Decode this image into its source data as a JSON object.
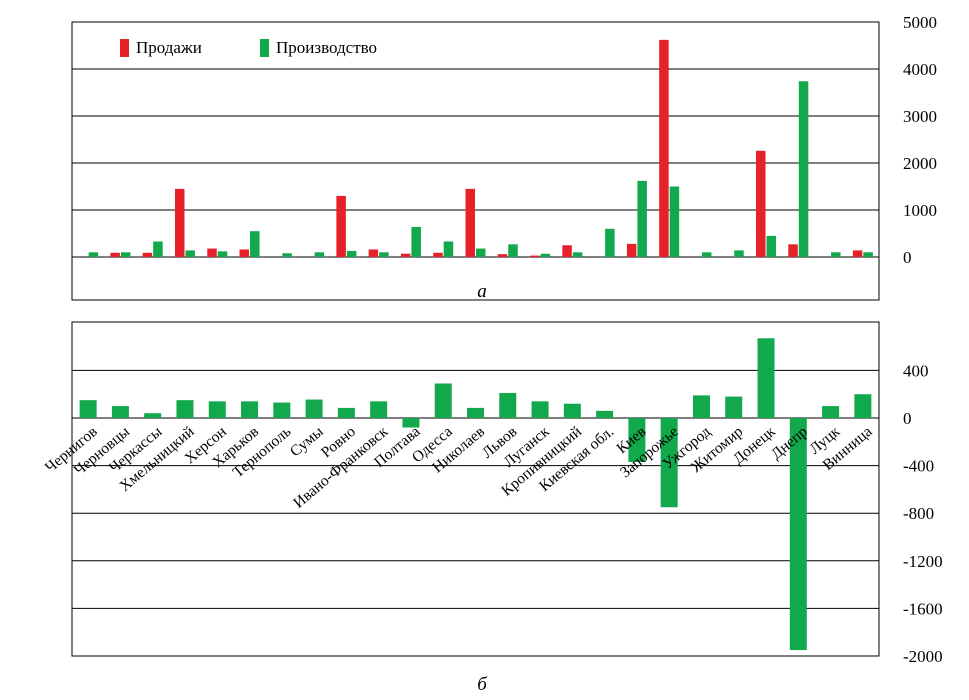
{
  "chart_data": [
    {
      "type": "bar",
      "panel_label": "а",
      "categories": [
        "Чернигов",
        "Черновцы",
        "Черкассы",
        "Хмельницкий",
        "Херсон",
        "Харьков",
        "Тернополь",
        "Сумы",
        "Ровно",
        "Ивано-Франковск",
        "Полтава",
        "Одесса",
        "Николаев",
        "Львов",
        "Луганск",
        "Кропивницкий",
        "Киевская обл.",
        "Киев",
        "Запорожье",
        "Ужгород",
        "Житомир",
        "Донецк",
        "Днепр",
        "Луцк",
        "Винница"
      ],
      "series": [
        {
          "name": "Продажи",
          "color": "#e8202a",
          "values": [
            0,
            90,
            90,
            1450,
            180,
            160,
            0,
            0,
            1300,
            160,
            70,
            90,
            1450,
            60,
            30,
            250,
            0,
            280,
            4620,
            0,
            0,
            2260,
            270,
            0,
            140
          ]
        },
        {
          "name": "Производство",
          "color": "#12a84c",
          "values": [
            100,
            100,
            330,
            140,
            120,
            550,
            80,
            100,
            130,
            100,
            640,
            330,
            180,
            270,
            70,
            100,
            600,
            1620,
            1500,
            100,
            140,
            450,
            3740,
            100,
            100
          ]
        }
      ],
      "ylim": [
        0,
        5000
      ],
      "yticks": [
        0,
        1000,
        2000,
        3000,
        4000,
        5000
      ],
      "legend_position": "top-left",
      "grid": true,
      "xlabel": "",
      "ylabel": ""
    },
    {
      "type": "bar",
      "panel_label": "б",
      "categories": [
        "Чернигов",
        "Черновцы",
        "Черкассы",
        "Хмельницкий",
        "Херсон",
        "Харьков",
        "Тернополь",
        "Сумы",
        "Ровно",
        "Ивано-Франковск",
        "Полтава",
        "Одесса",
        "Николаев",
        "Львов",
        "Луганск",
        "Кропивницкий",
        "Киевская обл.",
        "Киев",
        "Запорожье",
        "Ужгород",
        "Житомир",
        "Донецк",
        "Днепр",
        "Луцк",
        "Винница"
      ],
      "series": [
        {
          "color": "#12a84c",
          "values": [
            150,
            100,
            40,
            150,
            140,
            140,
            130,
            155,
            85,
            140,
            -80,
            290,
            85,
            210,
            140,
            120,
            60,
            -370,
            -750,
            190,
            180,
            670,
            -1950,
            100,
            200
          ]
        }
      ],
      "ylim": [
        -2000,
        800
      ],
      "yticks": [
        -2000,
        -1600,
        -1200,
        -800,
        -400,
        0,
        400
      ],
      "grid": true,
      "xlabel": "",
      "ylabel": ""
    }
  ]
}
